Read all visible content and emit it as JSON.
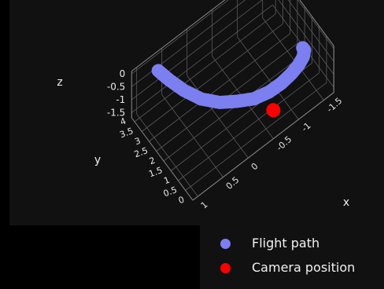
{
  "chart_data": {
    "type": "scatter",
    "dimensions": 3,
    "grid": true,
    "legend_position": "bottom-right",
    "axes": {
      "x": {
        "label": "x",
        "ticks": [
          "1",
          "0.5",
          "0",
          "-0.5",
          "-1",
          "-1.5"
        ],
        "range": [
          -1.7,
          1.1
        ]
      },
      "y": {
        "label": "y",
        "ticks": [
          "0",
          "0.5",
          "1",
          "1.5",
          "2",
          "2.5",
          "3",
          "3.5",
          "4"
        ],
        "range": [
          0,
          4.2
        ]
      },
      "z": {
        "label": "z",
        "ticks": [
          "0",
          "-0.5",
          "-1",
          "-1.5"
        ],
        "range": [
          -1.7,
          0.1
        ]
      }
    },
    "series": [
      {
        "name": "Flight path",
        "color": "#7b7ff0",
        "points": [
          [
            0.6,
            4.1,
            -0.55
          ],
          [
            0.5,
            3.7,
            -0.75
          ],
          [
            0.35,
            3.2,
            -1.0
          ],
          [
            0.15,
            2.7,
            -1.25
          ],
          [
            -0.1,
            2.3,
            -1.45
          ],
          [
            -0.35,
            2.0,
            -1.55
          ],
          [
            -0.6,
            1.7,
            -1.6
          ],
          [
            -0.85,
            1.5,
            -1.55
          ],
          [
            -1.05,
            1.35,
            -1.4
          ],
          [
            -1.2,
            1.2,
            -1.15
          ],
          [
            -1.3,
            1.05,
            -0.85
          ],
          [
            -1.35,
            0.9,
            -0.5
          ],
          [
            -1.35,
            0.8,
            -0.15
          ],
          [
            -1.3,
            0.75,
            0.05
          ]
        ]
      },
      {
        "name": "Camera position",
        "color": "#ff0000",
        "points": [
          [
            -0.5,
            0.0,
            -0.6
          ]
        ]
      }
    ]
  }
}
